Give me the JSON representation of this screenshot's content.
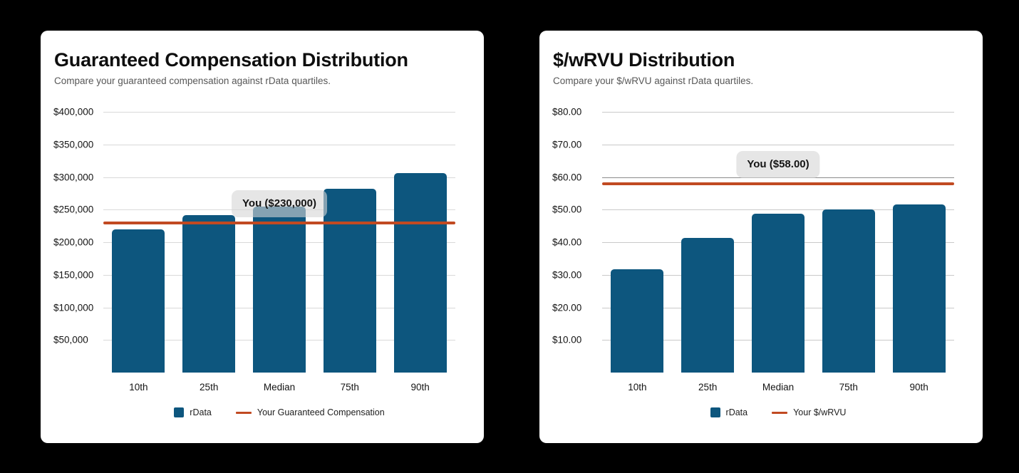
{
  "page": {
    "background": "#000000",
    "card_background": "#ffffff"
  },
  "chart_data": [
    {
      "type": "bar",
      "title": "Guaranteed Compensation Distribution",
      "subtitle": "Compare your guaranteed compensation against rData quartiles.",
      "categories": [
        "10th",
        "25th",
        "Median",
        "75th",
        "90th"
      ],
      "series": [
        {
          "name": "rData",
          "values": [
            220000,
            242000,
            255000,
            282000,
            306000
          ]
        }
      ],
      "reference_line": {
        "value": 230000,
        "label": "You ($230,000)",
        "color": "#c14a22"
      },
      "ylim": [
        0,
        400000
      ],
      "yticks": [
        {
          "value": 400000,
          "label": "$400,000"
        },
        {
          "value": 350000,
          "label": "$350,000"
        },
        {
          "value": 300000,
          "label": "$300,000"
        },
        {
          "value": 250000,
          "label": "$250,000"
        },
        {
          "value": 200000,
          "label": "$200,000"
        },
        {
          "value": 150000,
          "label": "$150,000"
        },
        {
          "value": 100000,
          "label": "$100,000"
        },
        {
          "value": 50000,
          "label": "$50,000"
        }
      ],
      "grid": true,
      "gridline_color": "#d9d9d9",
      "emphasized_gridline": null,
      "bar_color": "#0d567e",
      "legend_position": "bottom",
      "legend": [
        {
          "marker": "square",
          "color": "#0d567e",
          "label": "rData"
        },
        {
          "marker": "line",
          "color": "#c14a22",
          "label": "Your Guaranteed Compensation"
        }
      ]
    },
    {
      "type": "bar",
      "title": "$/wRVU Distribution",
      "subtitle": "Compare your $/wRVU against rData quartiles.",
      "categories": [
        "10th",
        "25th",
        "Median",
        "75th",
        "90th"
      ],
      "series": [
        {
          "name": "rData",
          "values": [
            31.8,
            41.4,
            48.7,
            50.0,
            51.5
          ]
        }
      ],
      "reference_line": {
        "value": 58,
        "label": "You ($58.00)",
        "color": "#c14a22"
      },
      "ylim": [
        0,
        80
      ],
      "yticks": [
        {
          "value": 80,
          "label": "$80.00"
        },
        {
          "value": 70,
          "label": "$70.00"
        },
        {
          "value": 60,
          "label": "$60.00"
        },
        {
          "value": 50,
          "label": "$50.00"
        },
        {
          "value": 40,
          "label": "$40.00"
        },
        {
          "value": 30,
          "label": "$30.00"
        },
        {
          "value": 20,
          "label": "$20.00"
        },
        {
          "value": 10,
          "label": "$10.00"
        }
      ],
      "grid": true,
      "gridline_color": "#c9c9c9",
      "emphasized_gridline": 60,
      "bar_color": "#0d567e",
      "legend_position": "bottom",
      "legend": [
        {
          "marker": "square",
          "color": "#0d567e",
          "label": "rData"
        },
        {
          "marker": "line",
          "color": "#c14a22",
          "label": "Your $/wRVU"
        }
      ]
    }
  ]
}
